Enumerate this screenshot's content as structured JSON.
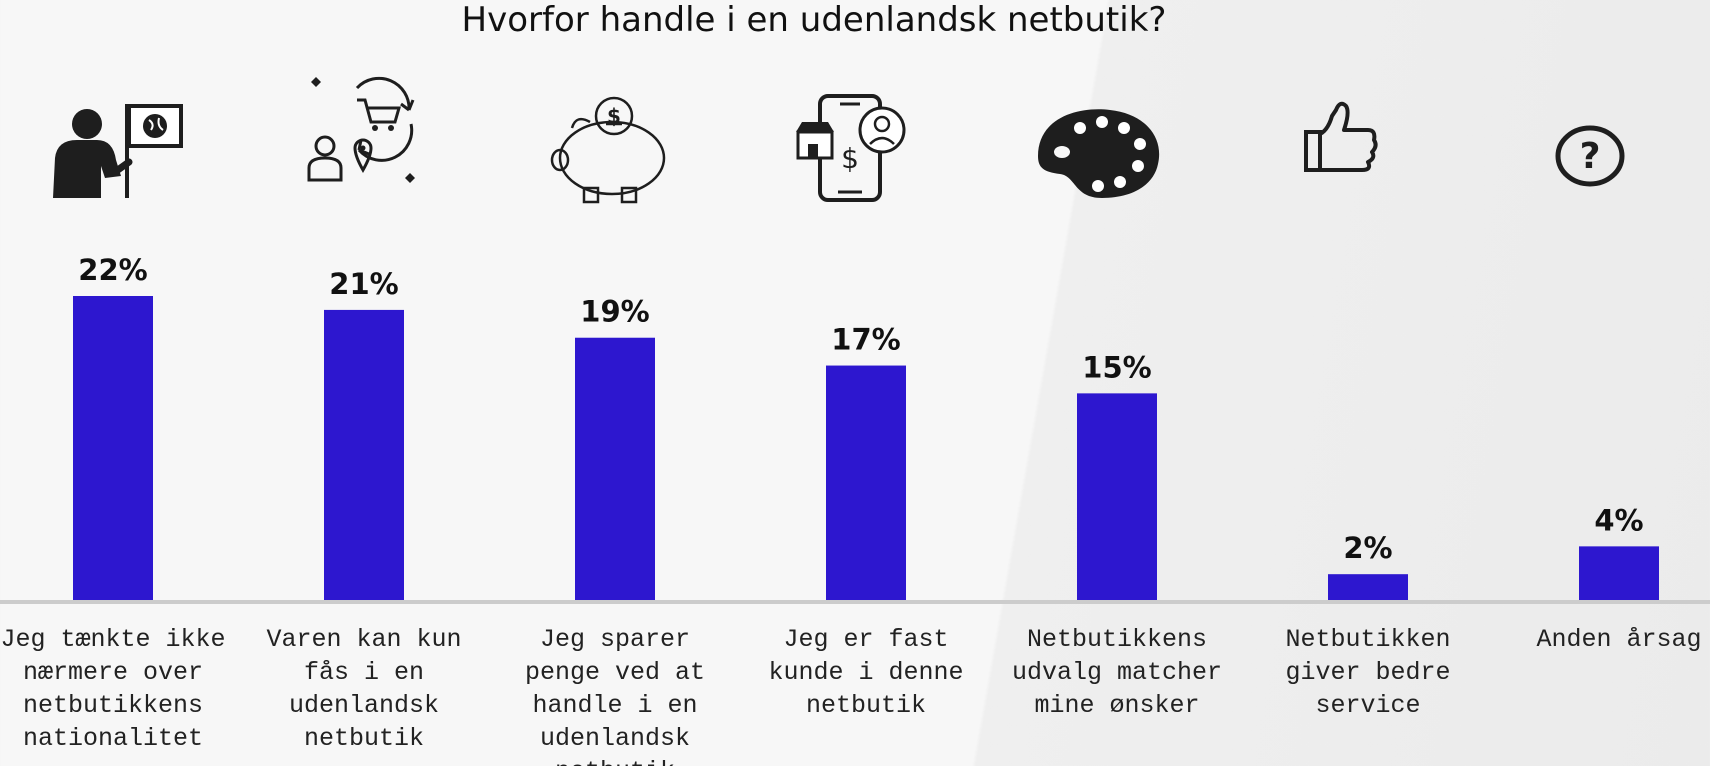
{
  "chart_data": {
    "type": "bar",
    "title": "Hvorfor handle i en udenlandsk netbutik?",
    "categories": [
      "Jeg tænkte ikke nærmere over netbutikkens nationalitet",
      "Varen kan kun fås i en udenlandsk netbutik",
      "Jeg sparer penge ved at handle i en udenlandsk netbutik",
      "Jeg er fast kunde i denne netbutik",
      "Netbutikkens udvalg matcher mine ønsker",
      "Netbutikken giver bedre service",
      "Anden årsag"
    ],
    "values": [
      22,
      21,
      19,
      17,
      15,
      2,
      4
    ],
    "value_labels": [
      "22%",
      "21%",
      "19%",
      "17%",
      "15%",
      "2%",
      "4%"
    ],
    "icons": [
      "person-with-flag-icon",
      "cart-location-icon",
      "piggy-bank-icon",
      "mobile-shop-icon",
      "palette-icon",
      "thumbs-up-icon",
      "question-icon"
    ],
    "xlabel": "",
    "ylabel": "",
    "ylim": [
      0,
      22
    ],
    "grid": false,
    "legend": "none",
    "colors": {
      "bar": "#2d17cf",
      "baseline": "#cccccc",
      "text": "#111111"
    }
  }
}
